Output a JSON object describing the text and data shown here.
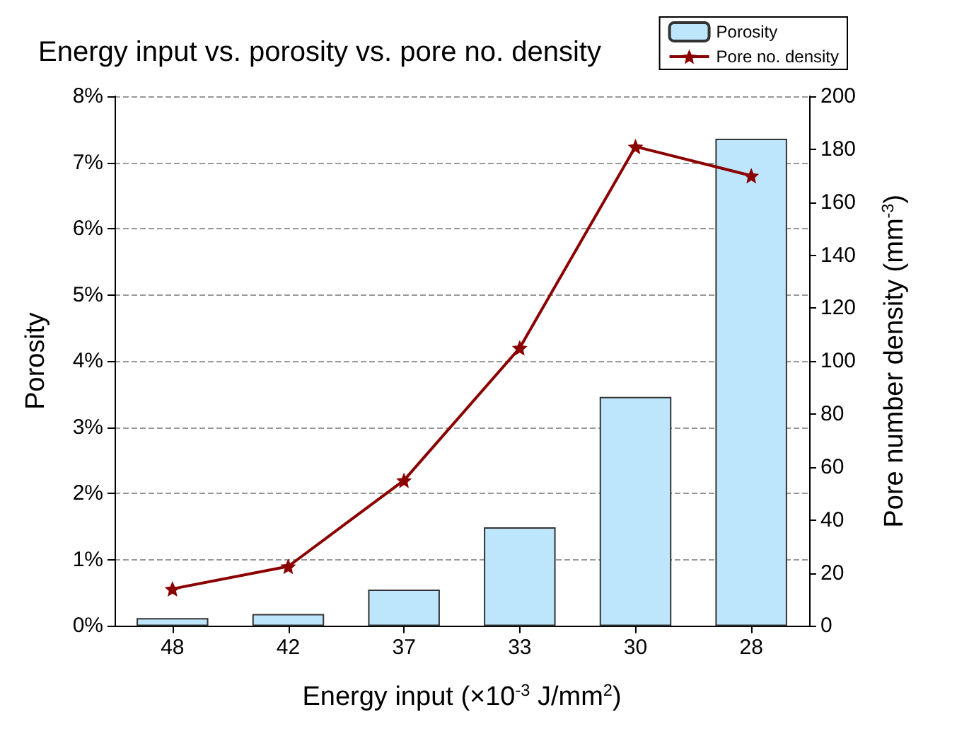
{
  "chart_data": {
    "type": "bar",
    "title": "Energy input vs. porosity vs. pore no. density",
    "xlabel": "Energy input (×10$^{-3}$ J/mm$^{2}$)",
    "ylabel": "Porosity",
    "y2label": "Pore number density (mm$^{-3}$)",
    "categories": [
      "48",
      "42",
      "37",
      "33",
      "30",
      "28"
    ],
    "series": [
      {
        "name": "Porosity",
        "color": "#bde5fb",
        "values": [
          0.12,
          0.18,
          0.55,
          1.49,
          3.46,
          7.36
        ]
      },
      {
        "name": "Pore no. density",
        "type": "line",
        "axis": "y2",
        "color": "#8b0000",
        "marker": "star",
        "values": [
          14,
          22.5,
          55,
          105,
          181,
          170
        ]
      }
    ],
    "ylim": [
      0,
      8
    ],
    "yticks": [
      {
        "value": 0,
        "label": "0%"
      },
      {
        "value": 1,
        "label": "1%"
      },
      {
        "value": 2,
        "label": "2%"
      },
      {
        "value": 3,
        "label": "3%"
      },
      {
        "value": 4,
        "label": "4%"
      },
      {
        "value": 5,
        "label": "5%"
      },
      {
        "value": 6,
        "label": "6%"
      },
      {
        "value": 7,
        "label": "7%"
      },
      {
        "value": 8,
        "label": "8%"
      }
    ],
    "y2lim": [
      0,
      200
    ],
    "y2ticks": [
      0,
      20,
      40,
      60,
      80,
      100,
      120,
      140,
      160,
      180,
      200
    ],
    "grid": "y",
    "legend": "top right"
  }
}
